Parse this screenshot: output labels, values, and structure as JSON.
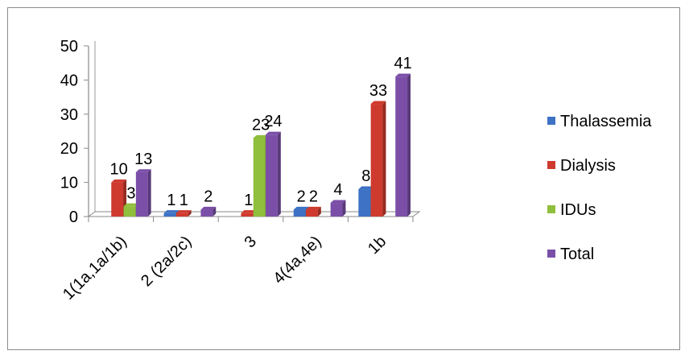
{
  "chart_data": {
    "type": "bar",
    "categories": [
      "1(1a,1a/1b)",
      "2 (2a/2c)",
      "3",
      "4(4a,4e)",
      "1b"
    ],
    "series": [
      {
        "name": "Thalassemia",
        "color": "#3d72c4",
        "values": [
          0,
          1,
          0,
          2,
          8
        ],
        "labels": [
          "",
          "1",
          "",
          "2",
          "8"
        ]
      },
      {
        "name": "Dialysis",
        "color": "#cf3a2e",
        "values": [
          10,
          1,
          1,
          2,
          33
        ],
        "labels": [
          "10",
          "1",
          "1",
          "2",
          "33"
        ]
      },
      {
        "name": "IDUs",
        "color": "#8fbf3c",
        "values": [
          3,
          0,
          23,
          0,
          0
        ],
        "labels": [
          "3",
          "",
          "23",
          "",
          ""
        ]
      },
      {
        "name": "Total",
        "color": "#7b4fa8",
        "values": [
          13,
          2,
          24,
          4,
          41
        ],
        "labels": [
          "13",
          "2",
          "24",
          "4",
          "41"
        ]
      }
    ],
    "y_ticks": [
      "0",
      "10",
      "20",
      "30",
      "40",
      "50"
    ],
    "ylim": [
      0,
      50
    ],
    "legend_position": "right",
    "grid": false
  }
}
